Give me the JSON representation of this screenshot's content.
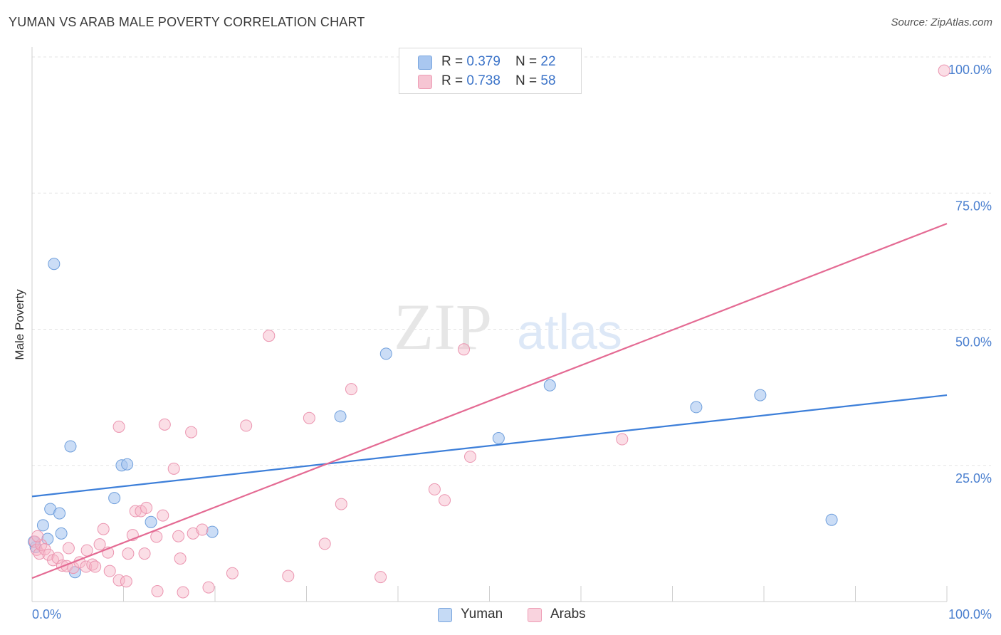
{
  "header": {
    "title": "YUMAN VS ARAB MALE POVERTY CORRELATION CHART",
    "source": "Source: ZipAtlas.com"
  },
  "watermark": {
    "zip": "ZIP",
    "atlas": "atlas"
  },
  "legend": {
    "rows": [
      {
        "r_label": "R = ",
        "r_value": "0.379",
        "n_label": "N = ",
        "n_value": "22",
        "color": "#a9c7f0"
      },
      {
        "r_label": "R = ",
        "r_value": "0.738",
        "n_label": "N = ",
        "n_value": "58",
        "color": "#f6b6c8"
      }
    ]
  },
  "bottom_legend": [
    {
      "label": "Yuman",
      "color": "#a9c7f0"
    },
    {
      "label": "Arabs",
      "color": "#f6b6c8"
    }
  ],
  "chart_data": {
    "type": "scatter",
    "title": "YUMAN VS ARAB MALE POVERTY CORRELATION CHART",
    "xlabel": "",
    "ylabel": "Male Poverty",
    "xlim": [
      0,
      100
    ],
    "ylim": [
      0,
      100
    ],
    "x_tick_labels": [
      "0.0%",
      "100.0%"
    ],
    "y_tick_labels": [
      "25.0%",
      "50.0%",
      "75.0%",
      "100.0%"
    ],
    "grid": true,
    "legend_position": "top-center",
    "series": [
      {
        "name": "Yuman",
        "color": "#3d7fd9",
        "fill": "#a9c7f0",
        "trend": {
          "x": [
            0,
            100
          ],
          "y": [
            19.3,
            37.9
          ]
        },
        "points": [
          {
            "x": 0.4,
            "y": 10.0
          },
          {
            "x": 1.2,
            "y": 14.0
          },
          {
            "x": 1.7,
            "y": 11.5
          },
          {
            "x": 2.0,
            "y": 17.0
          },
          {
            "x": 3.0,
            "y": 16.2
          },
          {
            "x": 3.2,
            "y": 12.5
          },
          {
            "x": 2.4,
            "y": 62.0
          },
          {
            "x": 4.2,
            "y": 28.5
          },
          {
            "x": 4.7,
            "y": 5.4
          },
          {
            "x": 9.0,
            "y": 19.0
          },
          {
            "x": 9.8,
            "y": 25.0
          },
          {
            "x": 10.4,
            "y": 25.2
          },
          {
            "x": 13.0,
            "y": 14.6
          },
          {
            "x": 19.7,
            "y": 12.8
          },
          {
            "x": 33.7,
            "y": 34.0
          },
          {
            "x": 38.7,
            "y": 45.5
          },
          {
            "x": 51.0,
            "y": 30.0
          },
          {
            "x": 56.6,
            "y": 39.7
          },
          {
            "x": 72.6,
            "y": 35.7
          },
          {
            "x": 79.6,
            "y": 37.9
          },
          {
            "x": 87.4,
            "y": 15.0
          },
          {
            "x": 0.2,
            "y": 11.0
          }
        ]
      },
      {
        "name": "Arabs",
        "color": "#e46a93",
        "fill": "#f6b6c8",
        "trend": {
          "x": [
            0,
            100
          ],
          "y": [
            4.3,
            69.4
          ]
        },
        "points": [
          {
            "x": 0.3,
            "y": 11.0
          },
          {
            "x": 0.5,
            "y": 9.5
          },
          {
            "x": 0.8,
            "y": 8.8
          },
          {
            "x": 1.0,
            "y": 10.4
          },
          {
            "x": 1.4,
            "y": 9.6
          },
          {
            "x": 1.8,
            "y": 8.6
          },
          {
            "x": 2.3,
            "y": 7.6
          },
          {
            "x": 2.8,
            "y": 8.0
          },
          {
            "x": 3.3,
            "y": 6.6
          },
          {
            "x": 3.8,
            "y": 6.5
          },
          {
            "x": 4.0,
            "y": 9.8
          },
          {
            "x": 4.5,
            "y": 6.2
          },
          {
            "x": 5.2,
            "y": 7.2
          },
          {
            "x": 5.9,
            "y": 6.4
          },
          {
            "x": 6.0,
            "y": 9.4
          },
          {
            "x": 6.6,
            "y": 6.8
          },
          {
            "x": 6.9,
            "y": 6.4
          },
          {
            "x": 7.4,
            "y": 10.5
          },
          {
            "x": 7.8,
            "y": 13.3
          },
          {
            "x": 8.3,
            "y": 9.0
          },
          {
            "x": 8.5,
            "y": 5.6
          },
          {
            "x": 9.5,
            "y": 3.9
          },
          {
            "x": 9.5,
            "y": 32.1
          },
          {
            "x": 10.3,
            "y": 3.7
          },
          {
            "x": 10.5,
            "y": 8.8
          },
          {
            "x": 11.0,
            "y": 12.2
          },
          {
            "x": 11.3,
            "y": 16.6
          },
          {
            "x": 11.9,
            "y": 16.6
          },
          {
            "x": 12.3,
            "y": 8.8
          },
          {
            "x": 12.5,
            "y": 17.2
          },
          {
            "x": 13.6,
            "y": 11.9
          },
          {
            "x": 14.3,
            "y": 15.8
          },
          {
            "x": 13.7,
            "y": 1.9
          },
          {
            "x": 14.5,
            "y": 32.5
          },
          {
            "x": 15.5,
            "y": 24.4
          },
          {
            "x": 16.0,
            "y": 12.0
          },
          {
            "x": 16.2,
            "y": 7.9
          },
          {
            "x": 16.5,
            "y": 1.7
          },
          {
            "x": 17.4,
            "y": 31.1
          },
          {
            "x": 17.6,
            "y": 12.5
          },
          {
            "x": 18.6,
            "y": 13.2
          },
          {
            "x": 19.3,
            "y": 2.6
          },
          {
            "x": 21.9,
            "y": 5.2
          },
          {
            "x": 23.4,
            "y": 32.3
          },
          {
            "x": 25.9,
            "y": 48.8
          },
          {
            "x": 28.0,
            "y": 4.7
          },
          {
            "x": 30.3,
            "y": 33.7
          },
          {
            "x": 32.0,
            "y": 10.6
          },
          {
            "x": 33.8,
            "y": 17.9
          },
          {
            "x": 34.9,
            "y": 39.0
          },
          {
            "x": 38.1,
            "y": 4.5
          },
          {
            "x": 44.0,
            "y": 20.6
          },
          {
            "x": 45.1,
            "y": 18.6
          },
          {
            "x": 47.2,
            "y": 46.3
          },
          {
            "x": 47.9,
            "y": 26.6
          },
          {
            "x": 64.5,
            "y": 29.8
          },
          {
            "x": 99.7,
            "y": 97.5
          },
          {
            "x": 0.6,
            "y": 12.0
          }
        ]
      }
    ]
  }
}
